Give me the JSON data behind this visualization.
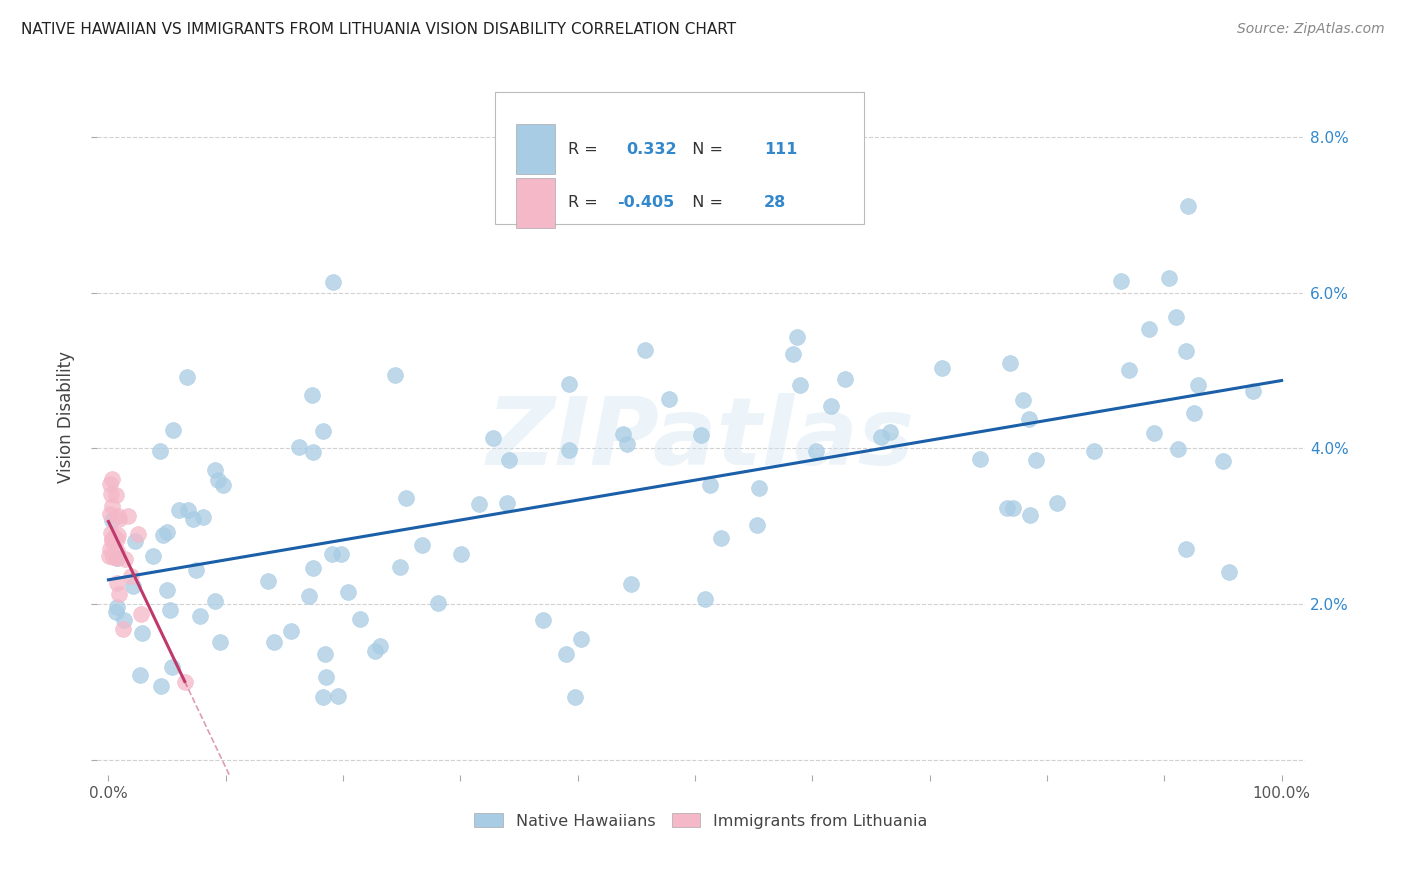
{
  "title": "NATIVE HAWAIIAN VS IMMIGRANTS FROM LITHUANIA VISION DISABILITY CORRELATION CHART",
  "source": "Source: ZipAtlas.com",
  "ylabel": "Vision Disability",
  "background_color": "#ffffff",
  "grid_color": "#cccccc",
  "blue_R": 0.332,
  "blue_N": 111,
  "pink_R": -0.405,
  "pink_N": 28,
  "blue_color": "#a8cce4",
  "blue_line_color": "#1a5fa8",
  "pink_color": "#f4b8c8",
  "pink_line_color": "#c0396b",
  "xlim_min": -0.01,
  "xlim_max": 1.02,
  "ylim_min": -0.002,
  "ylim_max": 0.09,
  "legend_label_blue": "Native Hawaiians",
  "legend_label_pink": "Immigrants from Lithuania",
  "title_fontsize": 11,
  "source_fontsize": 10,
  "tick_fontsize": 11,
  "ylabel_fontsize": 12
}
